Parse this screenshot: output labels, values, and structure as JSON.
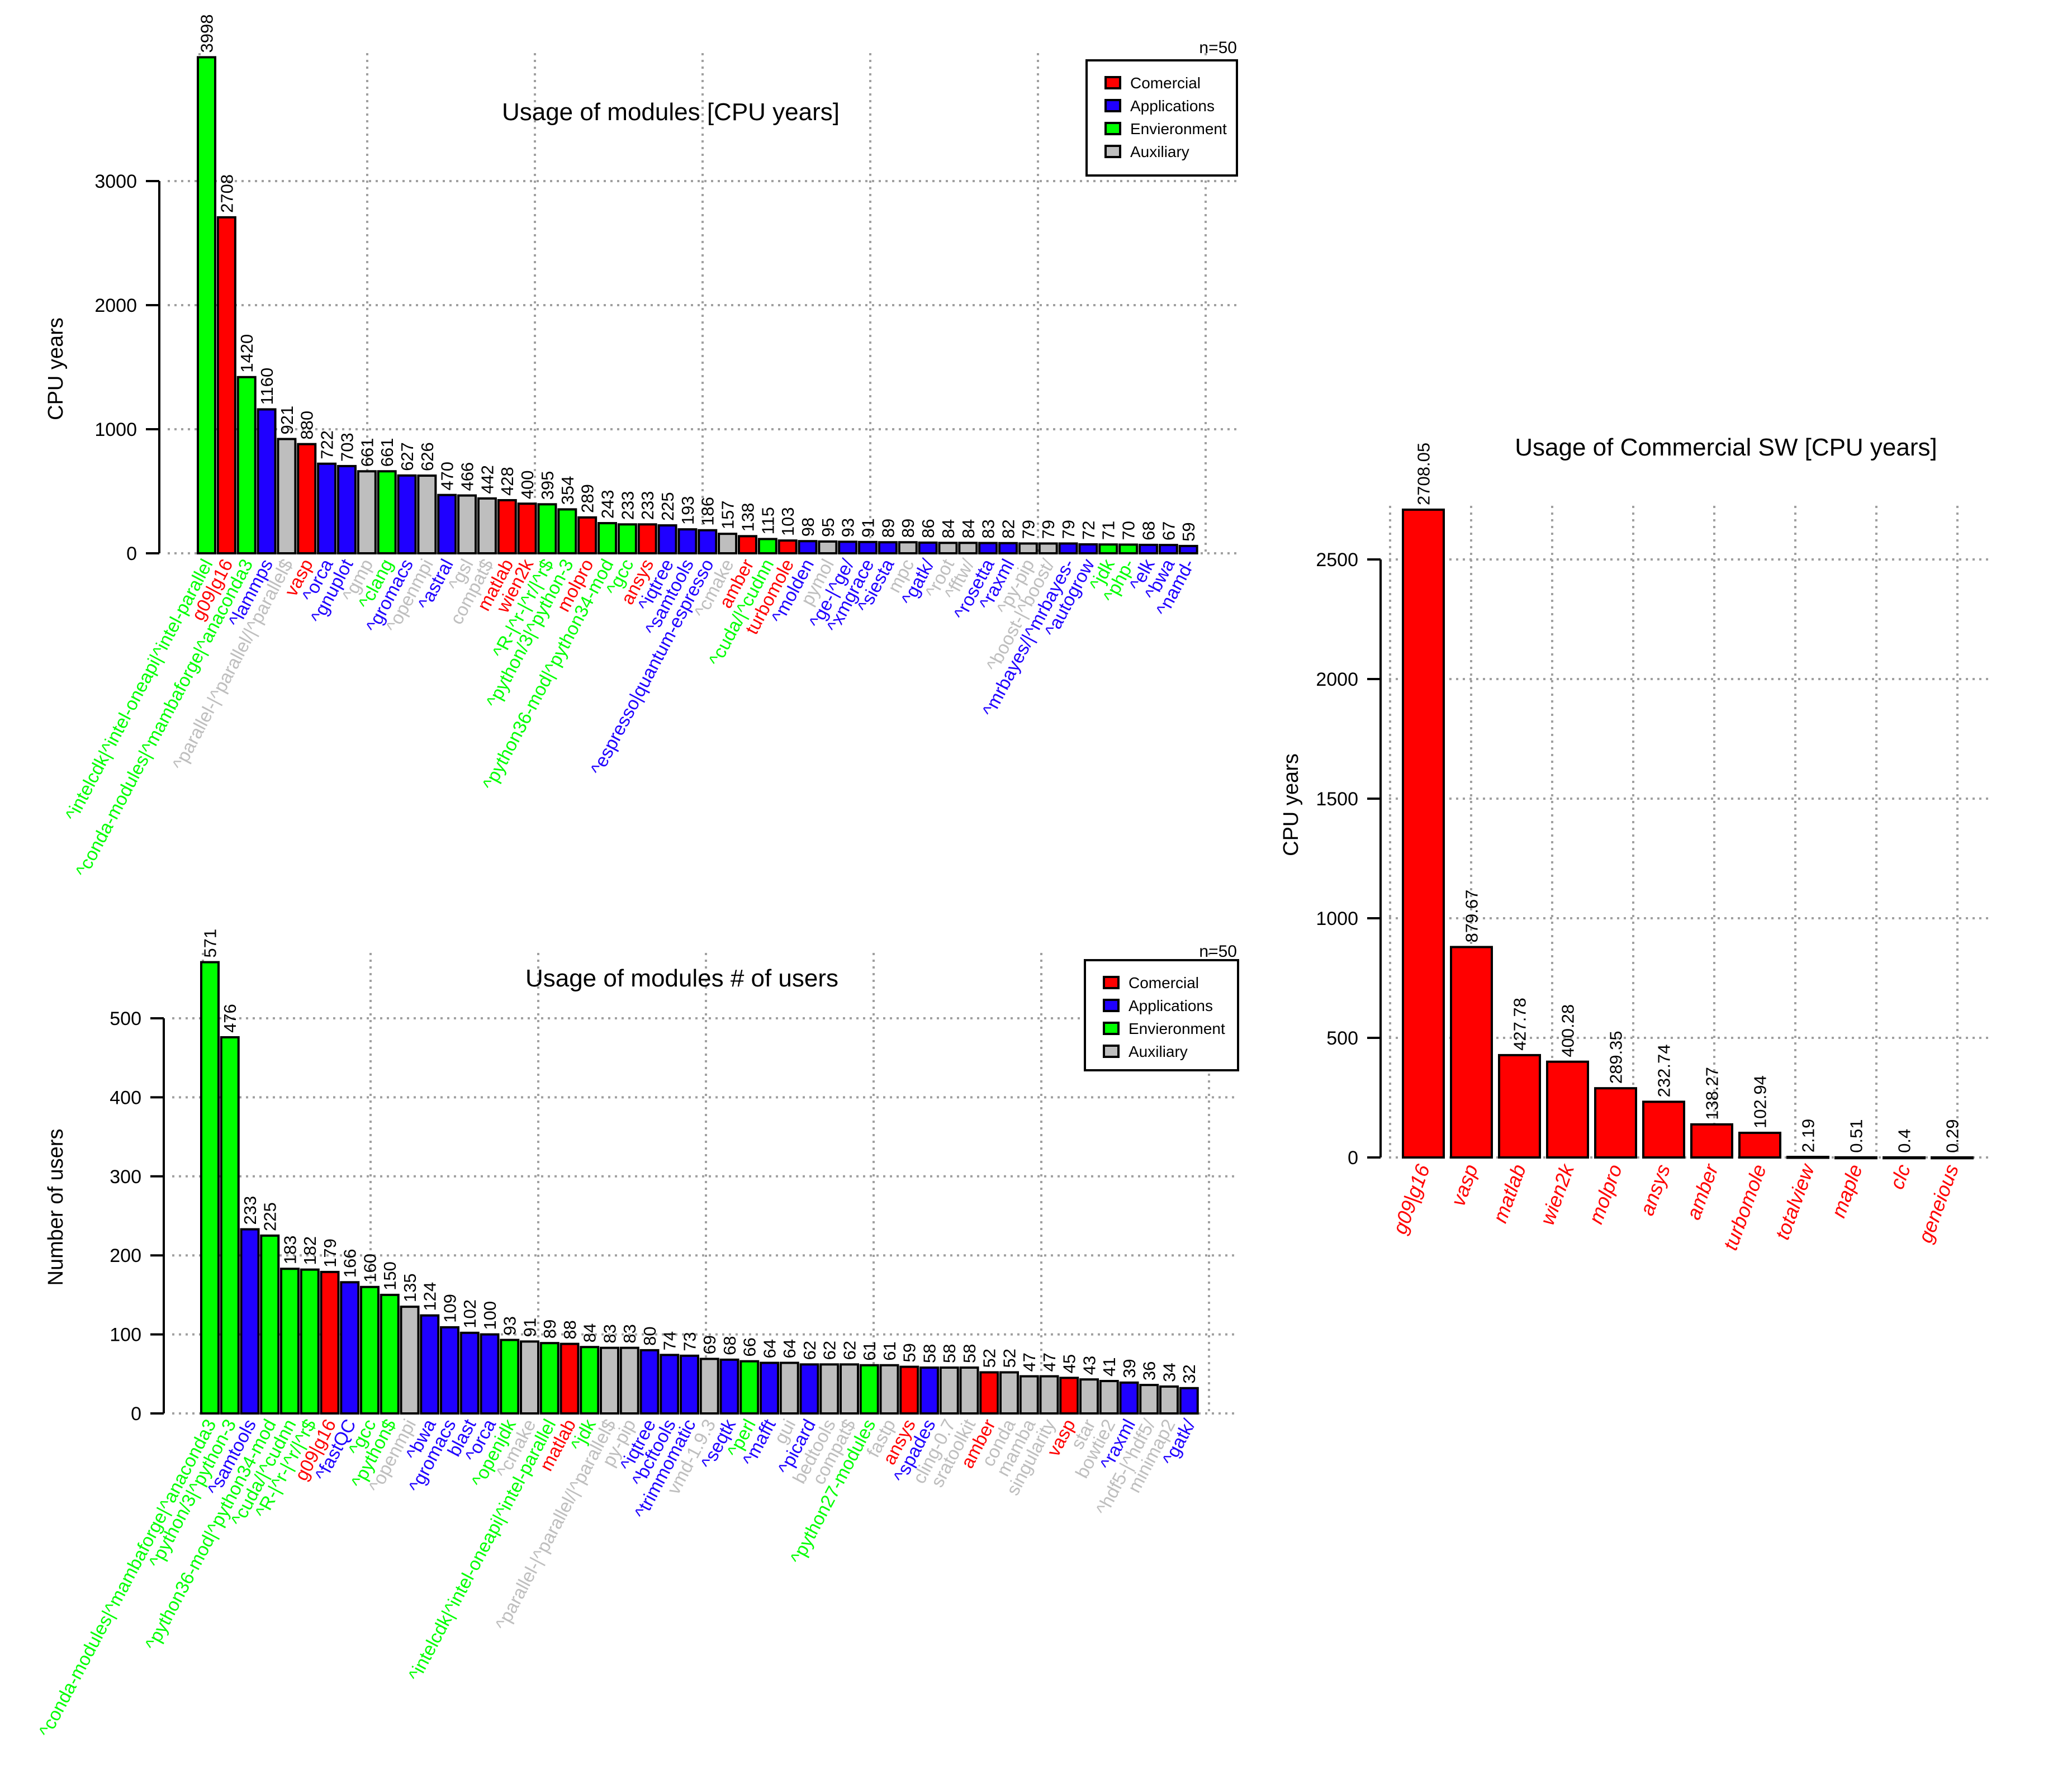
{
  "palette": {
    "Comercial": "#ff0000",
    "Applications": "#1f00ff",
    "Envieronment": "#00ff00",
    "Auxiliary": "#bebebe"
  },
  "legend": [
    "Comercial",
    "Applications",
    "Envieronment",
    "Auxiliary"
  ],
  "chart_data": [
    {
      "type": "bar",
      "title": "Usage of modules [CPU years]",
      "ylabel": "CPU years",
      "note": "n=50",
      "ylim": [
        0,
        4000
      ],
      "yticks": [
        0,
        1000,
        2000,
        3000
      ],
      "grid": true,
      "legend_position": "top-right",
      "categories": [
        "^intelcdk|^intel-oneapi|^intel-parallel",
        "g09|g16",
        "^conda-modules|^mambaforge|^anaconda3",
        "^lammps",
        "^parallel-|^parallel/|^parallel$",
        "vasp",
        "^orca",
        "^gnuplot",
        "^gmp",
        "^clang",
        "^gromacs",
        "^openmpi",
        "^astral",
        "^gsl",
        "compat$",
        "matlab",
        "wien2k",
        "^R-|^r-|^r/|^r$",
        "^python/3|^python-3",
        "molpro",
        "^python36-mod|^python34-mod",
        "^gcc",
        "ansys",
        "^iqtree",
        "^samtools",
        "^espresso|quantum-espresso",
        "^cmake",
        "amber",
        "^cuda/|^cudnn",
        "turbomole",
        "^molden",
        "pymol",
        "^ge-|^ge/",
        "^xmgrace",
        "^siesta",
        "mpc",
        "^gatk/",
        "^root",
        "^fftw/",
        "^rosetta",
        "^raxml",
        "^py-pip",
        "^boost-|^boost/",
        "^mrbayes/|^mrbayes-",
        "^autogrow",
        "^jdk",
        "^php-",
        "^elk",
        "^bwa",
        "^namd-"
      ],
      "values": [
        3998,
        2708,
        1420,
        1160,
        921,
        880,
        722,
        703,
        661,
        661,
        627,
        626,
        470,
        466,
        442,
        428,
        400,
        395,
        354,
        289,
        243,
        233,
        233,
        225,
        193,
        186,
        157,
        138,
        115,
        103,
        98,
        95,
        93,
        91,
        89,
        89,
        86,
        84,
        84,
        83,
        82,
        79,
        79,
        79,
        72,
        71,
        70,
        68,
        67,
        59
      ],
      "groups": [
        "Envieronment",
        "Comercial",
        "Envieronment",
        "Applications",
        "Auxiliary",
        "Comercial",
        "Applications",
        "Applications",
        "Auxiliary",
        "Envieronment",
        "Applications",
        "Auxiliary",
        "Applications",
        "Auxiliary",
        "Auxiliary",
        "Comercial",
        "Comercial",
        "Envieronment",
        "Envieronment",
        "Comercial",
        "Envieronment",
        "Envieronment",
        "Comercial",
        "Applications",
        "Applications",
        "Applications",
        "Auxiliary",
        "Comercial",
        "Envieronment",
        "Comercial",
        "Applications",
        "Auxiliary",
        "Applications",
        "Applications",
        "Applications",
        "Auxiliary",
        "Applications",
        "Auxiliary",
        "Auxiliary",
        "Applications",
        "Applications",
        "Auxiliary",
        "Auxiliary",
        "Applications",
        "Applications",
        "Envieronment",
        "Envieronment",
        "Applications",
        "Applications",
        "Applications"
      ]
    },
    {
      "type": "bar",
      "title": "Usage of modules # of users",
      "ylabel": "Number of users",
      "note": "n=50",
      "ylim": [
        0,
        600
      ],
      "yticks": [
        0,
        100,
        200,
        300,
        400,
        500
      ],
      "grid": true,
      "legend_position": "top-right",
      "categories": [
        "^conda-modules|^mambaforge|^anaconda3",
        "^python/3|^python-3",
        "^samtools",
        "^python36-mod|^python34-mod",
        "^cuda/|^cudnn",
        "^R-|^r-|^r/|^r$",
        "g09|g16",
        "^fastQC",
        "^gcc",
        "^python$",
        "^openmpi",
        "^bwa",
        "^gromacs",
        "blast",
        "^orca",
        "^openjdk",
        "^cmake",
        "^intelcdk|^intel-oneapi|^intel-parallel",
        "matlab",
        "^jdk",
        "^parallel-|^parallel/|^parallel$",
        "py-pip",
        "^iqtree",
        "^bcftools",
        "^trimmomatic",
        "vmd-1.9.3",
        "^seqtk",
        "^perl",
        "^mafft",
        "gui",
        "^picard",
        "bedtools",
        "compat$",
        "^python27-modules",
        "fastp",
        "ansys",
        "^spades",
        "cling-0.7",
        "sratoolkit",
        "amber",
        "conda",
        "mamba",
        "singularity",
        "vasp",
        "star",
        "bowtie2",
        "^raxml",
        "^hdf5-|^hdf5/",
        "minimap2",
        "^gatk/"
      ],
      "values": [
        571,
        476,
        233,
        225,
        183,
        182,
        179,
        166,
        160,
        150,
        135,
        124,
        109,
        102,
        100,
        93,
        91,
        89,
        88,
        84,
        83,
        83,
        80,
        74,
        73,
        69,
        68,
        66,
        64,
        64,
        62,
        62,
        62,
        61,
        61,
        59,
        58,
        58,
        58,
        52,
        52,
        47,
        47,
        45,
        43,
        41,
        39,
        36,
        34,
        32
      ],
      "groups": [
        "Envieronment",
        "Envieronment",
        "Applications",
        "Envieronment",
        "Envieronment",
        "Envieronment",
        "Comercial",
        "Applications",
        "Envieronment",
        "Envieronment",
        "Auxiliary",
        "Applications",
        "Applications",
        "Applications",
        "Applications",
        "Envieronment",
        "Auxiliary",
        "Envieronment",
        "Comercial",
        "Envieronment",
        "Auxiliary",
        "Auxiliary",
        "Applications",
        "Applications",
        "Applications",
        "Auxiliary",
        "Applications",
        "Envieronment",
        "Applications",
        "Auxiliary",
        "Applications",
        "Auxiliary",
        "Auxiliary",
        "Envieronment",
        "Auxiliary",
        "Comercial",
        "Applications",
        "Auxiliary",
        "Auxiliary",
        "Comercial",
        "Auxiliary",
        "Auxiliary",
        "Auxiliary",
        "Comercial",
        "Auxiliary",
        "Auxiliary",
        "Applications",
        "Auxiliary",
        "Auxiliary",
        "Applications"
      ]
    },
    {
      "type": "bar",
      "title": "Usage of Commercial SW [CPU years]",
      "ylabel": "CPU years",
      "ylim": [
        0,
        2800
      ],
      "yticks": [
        0,
        500,
        1000,
        1500,
        2000,
        2500
      ],
      "grid": true,
      "categories": [
        "g09|g16",
        "vasp",
        "matlab",
        "wien2k",
        "molpro",
        "ansys",
        "amber",
        "turbomole",
        "totalview",
        "maple",
        "clc",
        "geneious"
      ],
      "values": [
        2708.05,
        879.67,
        427.78,
        400.28,
        289.35,
        232.74,
        138.27,
        102.94,
        2.19,
        0.51,
        0.4,
        0.29
      ],
      "value_labels": [
        "2708.05",
        "879.67",
        "427.78",
        "400.28",
        "289.35",
        "232.74",
        "138.27",
        "102.94",
        "2.19",
        "0.51",
        "0.4",
        "0.29"
      ],
      "groups": [
        "Comercial",
        "Comercial",
        "Comercial",
        "Comercial",
        "Comercial",
        "Comercial",
        "Comercial",
        "Comercial",
        "Comercial",
        "Comercial",
        "Comercial",
        "Comercial"
      ]
    }
  ]
}
